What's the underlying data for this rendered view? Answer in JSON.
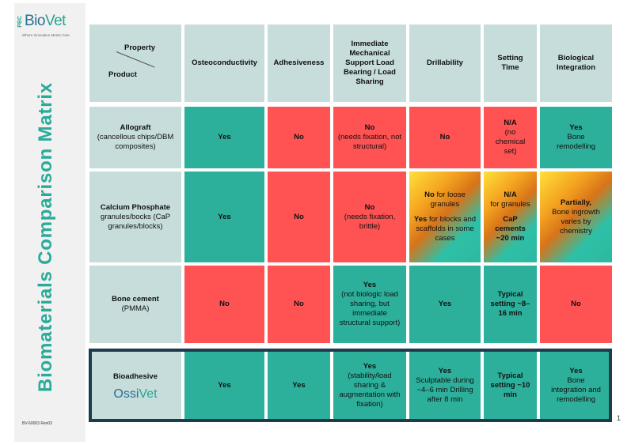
{
  "brand": {
    "pbc": "PBC",
    "name_a": "Bio",
    "name_b": "Vet",
    "tagline": "Where Innovation Meets Care"
  },
  "title": "Biomaterials Comparison Matrix",
  "doc_id": "BV-60003  Rev03",
  "page_number": "1",
  "header": {
    "property": "Property",
    "product": "Product",
    "columns": [
      "Osteoconductivity",
      "Adhesiveness",
      "Immediate Mechanical Support Load Bearing / Load Sharing",
      "Drillability",
      "Setting Time",
      "Biological Integration"
    ]
  },
  "rows": {
    "allograft": {
      "name": "Allograft",
      "sub": "(cancellous chips/DBM composites)",
      "osteo": "Yes",
      "adhesive": "No",
      "support_main": "No",
      "support_note": "(needs fixation, not structural)",
      "drill": "No",
      "setting_main": "N/A",
      "setting_note": "(no chemical set)",
      "bio_main": "Yes",
      "bio_note": "Bone remodelling"
    },
    "cap": {
      "name": "Calcium Phosphate",
      "sub": "granules/bocks (CaP granules/blocks)",
      "osteo": "Yes",
      "adhesive": "No",
      "support_main": "No",
      "support_note": "(needs fixation, brittle)",
      "drill_a_bold": "No",
      "drill_a": "for loose granules",
      "drill_b_bold": "Yes",
      "drill_b": "for blocks and scaffolds in some cases",
      "setting_a_bold": "N/A",
      "setting_a": "for granules",
      "setting_b": "CaP cements ~20 min",
      "bio_main": "Partially,",
      "bio_note": "Bone ingrowth varies by chemistry"
    },
    "cement": {
      "name": "Bone cement",
      "sub": "(PMMA)",
      "osteo": "No",
      "adhesive": "No",
      "support_main": "Yes",
      "support_note": "(not biologic load sharing, but immediate structural support)",
      "drill": "Yes",
      "setting": "Typical setting ~8–16 min",
      "bio": "No"
    },
    "bioadhesive": {
      "name": "Bioadhesive",
      "logo_a": "Ossi",
      "logo_b": "Vet",
      "osteo": "Yes",
      "adhesive": "Yes",
      "support_main": "Yes",
      "support_note": "(stability/load sharing & augmentation with fixation)",
      "drill_main": "Yes",
      "drill_note": "Sculptable during ~4–6 min Drilling after 8 min",
      "setting": "Typical setting ~10 min",
      "bio_main": "Yes",
      "bio_note": "Bone integration and remodelling"
    }
  },
  "colors": {
    "yes": "#2db09b",
    "no": "#ff5252",
    "header": "#c6dddb",
    "title": "#2aab9a",
    "highlight_border": "#1d3b4a"
  }
}
